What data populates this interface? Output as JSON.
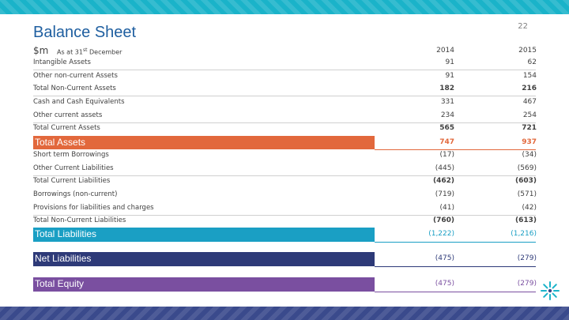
{
  "page_number": "22",
  "title": "Balance Sheet",
  "units": "$m",
  "as_at": "As at 31",
  "as_at_sup": "st",
  "as_at_rest": " December",
  "years": [
    "2014",
    "2015"
  ],
  "rows": [
    {
      "label": "Intangible Assets",
      "v1": "91",
      "v2": "62"
    },
    {
      "label": "Other non-current Assets",
      "v1": "91",
      "v2": "154"
    },
    {
      "label": "Total Non-Current Assets",
      "v1": "182",
      "v2": "216"
    },
    {
      "label": "Cash and Cash Equivalents",
      "v1": "331",
      "v2": "467"
    },
    {
      "label": "Other current assets",
      "v1": "234",
      "v2": "254"
    },
    {
      "label": "Total Current Assets",
      "v1": "565",
      "v2": "721"
    },
    {
      "label": "Short term Borrowings",
      "v1": "(17)",
      "v2": "(34)"
    },
    {
      "label": "Other Current Liabilities",
      "v1": "(445)",
      "v2": "(569)"
    },
    {
      "label": "Total Current Liabilities",
      "v1": "(462)",
      "v2": "(603)"
    },
    {
      "label": "Borrowings (non-current)",
      "v1": "(719)",
      "v2": "(571)"
    },
    {
      "label": "Provisions for liabilities and charges",
      "v1": "(41)",
      "v2": "(42)"
    },
    {
      "label": "Total Non-Current Liabilities",
      "v1": "(760)",
      "v2": "(613)"
    }
  ],
  "bars": [
    {
      "label": "Total Assets",
      "v1": "747",
      "v2": "937",
      "color": "#e2683c"
    },
    {
      "label": "Total Liabilities",
      "v1": "(1,222)",
      "v2": "(1,216)",
      "color": "#1a9fc4"
    },
    {
      "label": "Net  Liabilities",
      "v1": "(475)",
      "v2": "(279)",
      "color": "#2e3a78"
    },
    {
      "label": "Total Equity",
      "v1": "(475)",
      "v2": "(279)",
      "color": "#7a4fa0"
    }
  ],
  "colors": {
    "top_band": "#1ab3c9",
    "bottom_band": "#3a4a8c",
    "title": "#1f5fa0"
  }
}
